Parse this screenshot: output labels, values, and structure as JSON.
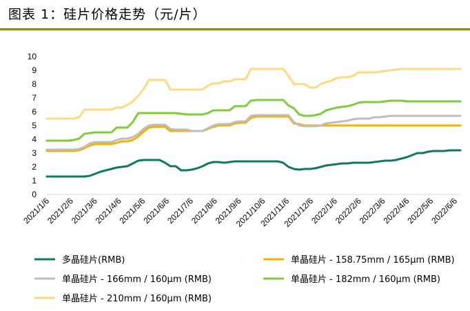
{
  "header": {
    "title": "图表 1：硅片价格走势（元/片）"
  },
  "chart_data": {
    "type": "line",
    "title": "",
    "xlabel": "",
    "ylabel": "",
    "ylim": [
      0,
      10
    ],
    "yticks": [
      0,
      1,
      2,
      3,
      4,
      5,
      6,
      7,
      8,
      9,
      10
    ],
    "grid": false,
    "legend_position": "bottom",
    "x_tick_labels": [
      "2021/1/6",
      "2021/2/6",
      "2021/3/6",
      "2021/4/6",
      "2021/5/6",
      "2021/6/6",
      "2021/7/6",
      "2021/8/6",
      "2021/9/6",
      "2021/10/6",
      "2021/11/6",
      "2021/12/6",
      "2022/1/6",
      "2022/2/6",
      "2022/3/6",
      "2022/4/6",
      "2022/5/6",
      "2022/6/6"
    ],
    "x": [
      "2021/1/6",
      "2021/1/13",
      "2021/1/20",
      "2021/1/27",
      "2021/2/3",
      "2021/2/10",
      "2021/2/17",
      "2021/2/24",
      "2021/3/3",
      "2021/3/10",
      "2021/3/17",
      "2021/3/24",
      "2021/3/31",
      "2021/4/7",
      "2021/4/14",
      "2021/4/21",
      "2021/4/28",
      "2021/5/5",
      "2021/5/12",
      "2021/5/19",
      "2021/5/26",
      "2021/6/2",
      "2021/6/9",
      "2021/6/16",
      "2021/6/23",
      "2021/6/30",
      "2021/7/7",
      "2021/7/14",
      "2021/7/21",
      "2021/7/28",
      "2021/8/4",
      "2021/8/11",
      "2021/8/18",
      "2021/8/25",
      "2021/9/1",
      "2021/9/8",
      "2021/9/15",
      "2021/9/22",
      "2021/9/29",
      "2021/10/6",
      "2021/10/13",
      "2021/10/20",
      "2021/10/27",
      "2021/11/3",
      "2021/11/10",
      "2021/11/17",
      "2021/11/24",
      "2021/12/1",
      "2021/12/8",
      "2021/12/15",
      "2021/12/22",
      "2021/12/29",
      "2022/1/5",
      "2022/1/12",
      "2022/1/19",
      "2022/1/26",
      "2022/2/2",
      "2022/2/9",
      "2022/2/16",
      "2022/2/23",
      "2022/3/2",
      "2022/3/9",
      "2022/3/16",
      "2022/3/23",
      "2022/3/30",
      "2022/4/6",
      "2022/4/13",
      "2022/4/20",
      "2022/4/27",
      "2022/5/4",
      "2022/5/11",
      "2022/5/18",
      "2022/5/25",
      "2022/6/1",
      "2022/6/8",
      "2022/6/15",
      "2022/6/22",
      "2022/6/29"
    ],
    "series": [
      {
        "name": "多晶硅片(RMB)",
        "color": "#0d7a5f",
        "values": [
          1.3,
          1.3,
          1.3,
          1.3,
          1.3,
          1.3,
          1.3,
          1.3,
          1.35,
          1.5,
          1.65,
          1.75,
          1.85,
          1.95,
          2.0,
          2.05,
          2.25,
          2.45,
          2.5,
          2.5,
          2.5,
          2.5,
          2.3,
          2.05,
          2.05,
          1.75,
          1.75,
          1.8,
          1.9,
          2.05,
          2.25,
          2.35,
          2.35,
          2.3,
          2.35,
          2.4,
          2.4,
          2.4,
          2.4,
          2.4,
          2.4,
          2.4,
          2.4,
          2.4,
          2.3,
          2.0,
          1.85,
          1.8,
          1.85,
          1.85,
          1.9,
          2.0,
          2.1,
          2.15,
          2.2,
          2.25,
          2.25,
          2.3,
          2.3,
          2.3,
          2.3,
          2.35,
          2.4,
          2.45,
          2.45,
          2.5,
          2.6,
          2.7,
          2.85,
          3.0,
          3.0,
          3.1,
          3.15,
          3.15,
          3.15,
          3.2,
          3.2,
          3.2
        ]
      },
      {
        "name": "单晶硅片 - 158.75mm / 165μm (RMB)",
        "color": "#f2b300",
        "values": [
          3.15,
          3.15,
          3.15,
          3.15,
          3.15,
          3.15,
          3.2,
          3.35,
          3.55,
          3.65,
          3.65,
          3.65,
          3.65,
          3.75,
          3.85,
          3.85,
          3.95,
          4.2,
          4.55,
          4.85,
          4.9,
          4.9,
          4.9,
          4.6,
          4.6,
          4.6,
          4.6,
          4.6,
          4.6,
          4.6,
          4.75,
          4.9,
          5.0,
          5.0,
          5.0,
          5.15,
          5.2,
          5.2,
          5.55,
          5.65,
          5.65,
          5.65,
          5.65,
          5.65,
          5.65,
          5.65,
          5.15,
          5.1,
          5.0,
          5.0,
          5.0,
          5.0,
          5.0,
          5.0,
          5.0,
          5.0,
          5.0,
          5.0,
          5.0,
          5.0,
          5.0,
          5.0,
          5.0,
          5.0,
          5.0,
          5.0,
          5.0,
          5.0,
          5.0,
          5.0,
          5.0,
          5.0,
          5.0,
          5.0,
          5.0,
          5.0,
          5.0,
          5.0
        ]
      },
      {
        "name": "单晶硅片 - 166mm / 160μm (RMB)",
        "color": "#bdbdbd",
        "values": [
          3.25,
          3.25,
          3.25,
          3.25,
          3.25,
          3.25,
          3.3,
          3.45,
          3.7,
          3.8,
          3.8,
          3.8,
          3.8,
          3.95,
          4.05,
          4.05,
          4.15,
          4.4,
          4.75,
          5.0,
          5.05,
          5.05,
          5.05,
          4.75,
          4.7,
          4.7,
          4.7,
          4.6,
          4.6,
          4.6,
          4.8,
          5.0,
          5.1,
          5.1,
          5.1,
          5.25,
          5.3,
          5.3,
          5.7,
          5.75,
          5.75,
          5.75,
          5.75,
          5.75,
          5.75,
          5.75,
          5.25,
          5.0,
          4.95,
          4.95,
          4.95,
          5.0,
          5.15,
          5.2,
          5.25,
          5.3,
          5.35,
          5.45,
          5.5,
          5.5,
          5.5,
          5.6,
          5.6,
          5.65,
          5.7,
          5.7,
          5.7,
          5.7,
          5.7,
          5.7,
          5.7,
          5.7,
          5.7,
          5.7,
          5.7,
          5.7,
          5.7,
          5.7
        ]
      },
      {
        "name": "单晶硅片 - 182mm / 160μm (RMB)",
        "color": "#7fcc3b",
        "values": [
          3.9,
          3.9,
          3.9,
          3.9,
          3.9,
          3.95,
          4.05,
          4.4,
          4.45,
          4.5,
          4.5,
          4.5,
          4.5,
          4.85,
          4.85,
          4.85,
          5.25,
          5.9,
          5.9,
          5.9,
          5.9,
          5.9,
          5.9,
          5.9,
          5.9,
          5.85,
          5.8,
          5.8,
          5.8,
          5.8,
          5.9,
          6.1,
          6.1,
          6.1,
          6.1,
          6.4,
          6.4,
          6.4,
          6.8,
          6.85,
          6.85,
          6.85,
          6.85,
          6.85,
          6.85,
          6.45,
          6.25,
          5.8,
          5.7,
          5.7,
          5.75,
          5.85,
          6.1,
          6.2,
          6.3,
          6.35,
          6.4,
          6.5,
          6.65,
          6.7,
          6.7,
          6.7,
          6.7,
          6.75,
          6.8,
          6.8,
          6.8,
          6.75,
          6.75,
          6.75,
          6.75,
          6.75,
          6.75,
          6.75,
          6.75,
          6.75,
          6.75,
          6.75
        ]
      },
      {
        "name": "单晶硅片 - 210mm / 160μm (RMB)",
        "color": "#fadb82",
        "values": [
          5.5,
          5.5,
          5.5,
          5.5,
          5.5,
          5.5,
          5.6,
          6.15,
          6.15,
          6.15,
          6.15,
          6.15,
          6.15,
          6.3,
          6.3,
          6.5,
          6.75,
          7.15,
          7.65,
          8.3,
          8.3,
          8.3,
          8.3,
          7.6,
          7.6,
          7.6,
          7.6,
          7.6,
          7.6,
          7.6,
          7.9,
          8.05,
          8.05,
          8.2,
          8.2,
          8.35,
          8.35,
          8.35,
          9.1,
          9.1,
          9.1,
          9.1,
          9.1,
          9.1,
          9.1,
          8.6,
          8.0,
          8.0,
          8.0,
          7.75,
          7.75,
          8.0,
          8.15,
          8.25,
          8.45,
          8.5,
          8.5,
          8.6,
          8.85,
          8.85,
          8.85,
          8.85,
          8.9,
          8.95,
          9.0,
          9.05,
          9.1,
          9.1,
          9.1,
          9.1,
          9.1,
          9.1,
          9.1,
          9.1,
          9.1,
          9.1,
          9.1,
          9.1
        ]
      }
    ]
  }
}
